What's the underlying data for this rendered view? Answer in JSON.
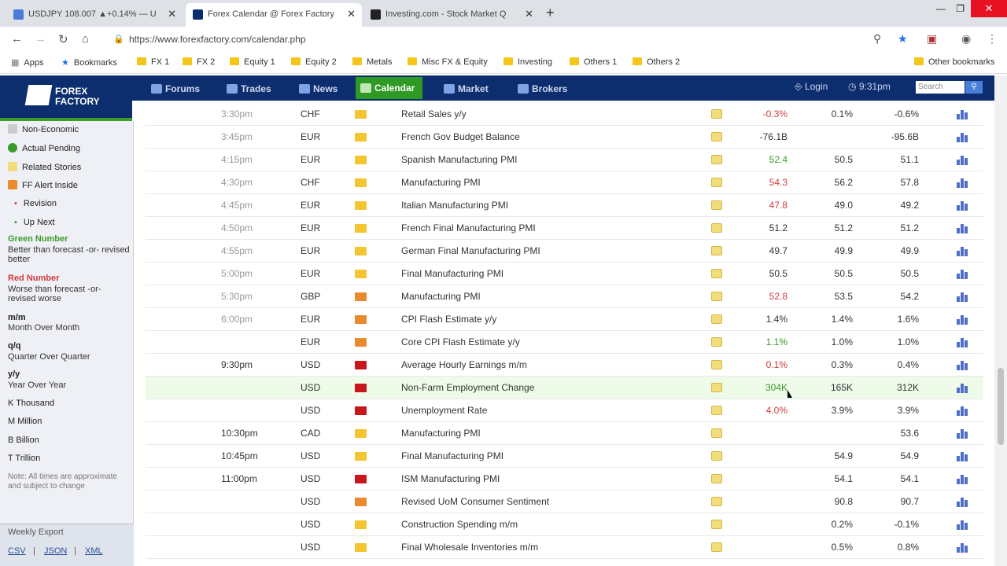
{
  "browser": {
    "tabs": [
      {
        "title": "USDJPY 108.007 ▲+0.14% — U"
      },
      {
        "title": "Forex Calendar @ Forex Factory"
      },
      {
        "title": "Investing.com - Stock Market Q"
      }
    ],
    "url": "https://www.forexfactory.com/calendar.php",
    "bookmarks": [
      "Apps",
      "Bookmarks",
      "FX 1",
      "FX 2",
      "Equity 1",
      "Equity 2",
      "Metals",
      "Misc FX & Equity",
      "Investing",
      "Others 1",
      "Others 2",
      "Other bookmarks"
    ]
  },
  "site": {
    "logo": "FOREX FACTORY",
    "nav": [
      "Forums",
      "Trades",
      "News",
      "Calendar",
      "Market",
      "Brokers"
    ],
    "login": "Login",
    "time": "9:31pm",
    "search_placeholder": "Search"
  },
  "legend": {
    "non_economic": "Non-Economic",
    "actual_pending": "Actual Pending",
    "related_stories": "Related Stories",
    "ff_alert": "FF Alert Inside",
    "revision": "Revision",
    "up_next": "Up Next",
    "green_title": "Green Number",
    "green_desc": "Better than forecast -or- revised better",
    "red_title": "Red Number",
    "red_desc": "Worse than forecast -or- revised worse",
    "mm_title": "m/m",
    "mm_desc": "Month Over Month",
    "qq_title": "q/q",
    "qq_desc": "Quarter Over Quarter",
    "yy_title": "y/y",
    "yy_desc": "Year Over Year",
    "k": "K Thousand",
    "m": "M Million",
    "b": "B Billion",
    "t": "T Trillion",
    "note": "Note: All times are approximate and subject to change",
    "weekly_export": "Weekly Export",
    "csv": "CSV",
    "json": "JSON",
    "xml": "XML"
  },
  "rows": [
    {
      "time": "3:30pm",
      "cur": "CHF",
      "impact": "yellow",
      "event": "Retail Sales y/y",
      "actual": "-0.3%",
      "actual_class": "red",
      "forecast": "0.1%",
      "previous": "-0.6%"
    },
    {
      "time": "3:45pm",
      "cur": "EUR",
      "impact": "yellow",
      "event": "French Gov Budget Balance",
      "actual": "-76.1B",
      "actual_class": "",
      "forecast": "",
      "previous": "-95.6B"
    },
    {
      "time": "4:15pm",
      "cur": "EUR",
      "impact": "yellow",
      "event": "Spanish Manufacturing PMI",
      "actual": "52.4",
      "actual_class": "green",
      "forecast": "50.5",
      "previous": "51.1"
    },
    {
      "time": "4:30pm",
      "cur": "CHF",
      "impact": "yellow",
      "event": "Manufacturing PMI",
      "actual": "54.3",
      "actual_class": "red",
      "forecast": "56.2",
      "previous": "57.8"
    },
    {
      "time": "4:45pm",
      "cur": "EUR",
      "impact": "yellow",
      "event": "Italian Manufacturing PMI",
      "actual": "47.8",
      "actual_class": "red",
      "forecast": "49.0",
      "previous": "49.2"
    },
    {
      "time": "4:50pm",
      "cur": "EUR",
      "impact": "yellow",
      "event": "French Final Manufacturing PMI",
      "actual": "51.2",
      "actual_class": "",
      "forecast": "51.2",
      "previous": "51.2"
    },
    {
      "time": "4:55pm",
      "cur": "EUR",
      "impact": "yellow",
      "event": "German Final Manufacturing PMI",
      "actual": "49.7",
      "actual_class": "",
      "forecast": "49.9",
      "previous": "49.9"
    },
    {
      "time": "5:00pm",
      "cur": "EUR",
      "impact": "yellow",
      "event": "Final Manufacturing PMI",
      "actual": "50.5",
      "actual_class": "",
      "forecast": "50.5",
      "previous": "50.5"
    },
    {
      "time": "5:30pm",
      "cur": "GBP",
      "impact": "orange",
      "event": "Manufacturing PMI",
      "actual": "52.8",
      "actual_class": "red",
      "forecast": "53.5",
      "previous": "54.2"
    },
    {
      "time": "6:00pm",
      "cur": "EUR",
      "impact": "orange",
      "event": "CPI Flash Estimate y/y",
      "actual": "1.4%",
      "actual_class": "",
      "forecast": "1.4%",
      "previous": "1.6%"
    },
    {
      "time": "",
      "cur": "EUR",
      "impact": "orange",
      "event": "Core CPI Flash Estimate y/y",
      "actual": "1.1%",
      "actual_class": "green",
      "forecast": "1.0%",
      "previous": "1.0%"
    },
    {
      "time": "9:30pm",
      "cur": "USD",
      "impact": "red",
      "event": "Average Hourly Earnings m/m",
      "actual": "0.1%",
      "actual_class": "red",
      "forecast": "0.3%",
      "previous": "0.4%"
    },
    {
      "time": "",
      "cur": "USD",
      "impact": "red",
      "event": "Non-Farm Employment Change",
      "actual": "304K",
      "actual_class": "green",
      "forecast": "165K",
      "previous": "312K"
    },
    {
      "time": "",
      "cur": "USD",
      "impact": "red",
      "event": "Unemployment Rate",
      "actual": "4.0%",
      "actual_class": "red",
      "forecast": "3.9%",
      "previous": "3.9%"
    },
    {
      "time": "10:30pm",
      "cur": "CAD",
      "impact": "yellow",
      "event": "Manufacturing PMI",
      "actual": "",
      "actual_class": "",
      "forecast": "",
      "previous": "53.6"
    },
    {
      "time": "10:45pm",
      "cur": "USD",
      "impact": "yellow",
      "event": "Final Manufacturing PMI",
      "actual": "",
      "actual_class": "",
      "forecast": "54.9",
      "previous": "54.9"
    },
    {
      "time": "11:00pm",
      "cur": "USD",
      "impact": "red",
      "event": "ISM Manufacturing PMI",
      "actual": "",
      "actual_class": "",
      "forecast": "54.1",
      "previous": "54.1"
    },
    {
      "time": "",
      "cur": "USD",
      "impact": "orange",
      "event": "Revised UoM Consumer Sentiment",
      "actual": "",
      "actual_class": "",
      "forecast": "90.8",
      "previous": "90.7"
    },
    {
      "time": "",
      "cur": "USD",
      "impact": "yellow",
      "event": "Construction Spending m/m",
      "actual": "",
      "actual_class": "",
      "forecast": "0.2%",
      "previous": "-0.1%"
    },
    {
      "time": "",
      "cur": "USD",
      "impact": "yellow",
      "event": "Final Wholesale Inventories m/m",
      "actual": "",
      "actual_class": "",
      "forecast": "0.5%",
      "previous": "0.8%"
    }
  ],
  "colors": {
    "impact_yellow": "#f3c531",
    "impact_orange": "#ea8a2c",
    "impact_red": "#c8161d"
  }
}
